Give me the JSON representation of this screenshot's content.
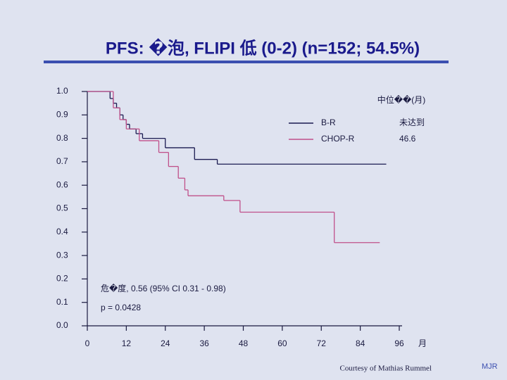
{
  "chart_data": {
    "type": "step",
    "title": "PFS:  �泡,  FLIPI 低 (0-2)  (n=152; 54.5%)",
    "legend_title": "中位��(月)",
    "x_label": "月",
    "xlim": [
      0,
      96
    ],
    "xticks": [
      0,
      12,
      24,
      36,
      48,
      60,
      72,
      84,
      96
    ],
    "ylim": [
      0,
      1
    ],
    "yticks": [
      {
        "value": 0,
        "label": "0.0"
      },
      0.1,
      0.2,
      0.3,
      0.4,
      0.5,
      0.6,
      0.7,
      0.8,
      0.9,
      {
        "value": 1,
        "label": "1.0"
      }
    ],
    "series": [
      {
        "name": "B-R",
        "median": "未达到",
        "color": "#1a1a50",
        "x": [
          0,
          7,
          8,
          9,
          10,
          11,
          12,
          13,
          15,
          17,
          24,
          33,
          40,
          92
        ],
        "values": [
          1,
          0.97,
          0.95,
          0.93,
          0.9,
          0.88,
          0.86,
          0.84,
          0.82,
          0.8,
          0.76,
          0.71,
          0.69,
          0.69
        ]
      },
      {
        "name": "CHOP-R",
        "median": 46.6,
        "color": "#c0508a",
        "x": [
          0,
          8,
          10,
          12,
          16,
          22,
          25,
          28,
          30,
          31,
          42,
          47,
          76,
          90
        ],
        "values": [
          1,
          0.93,
          0.88,
          0.84,
          0.79,
          0.74,
          0.68,
          0.63,
          0.58,
          0.555,
          0.535,
          0.485,
          0.355,
          0.355
        ]
      }
    ],
    "annotations": [
      "危�度, 0.56 (95% CI 0.31 - 0.98)",
      "p = 0.0428"
    ],
    "credit": "Courtesy of Mathias Rummel",
    "mark": "MJR"
  }
}
